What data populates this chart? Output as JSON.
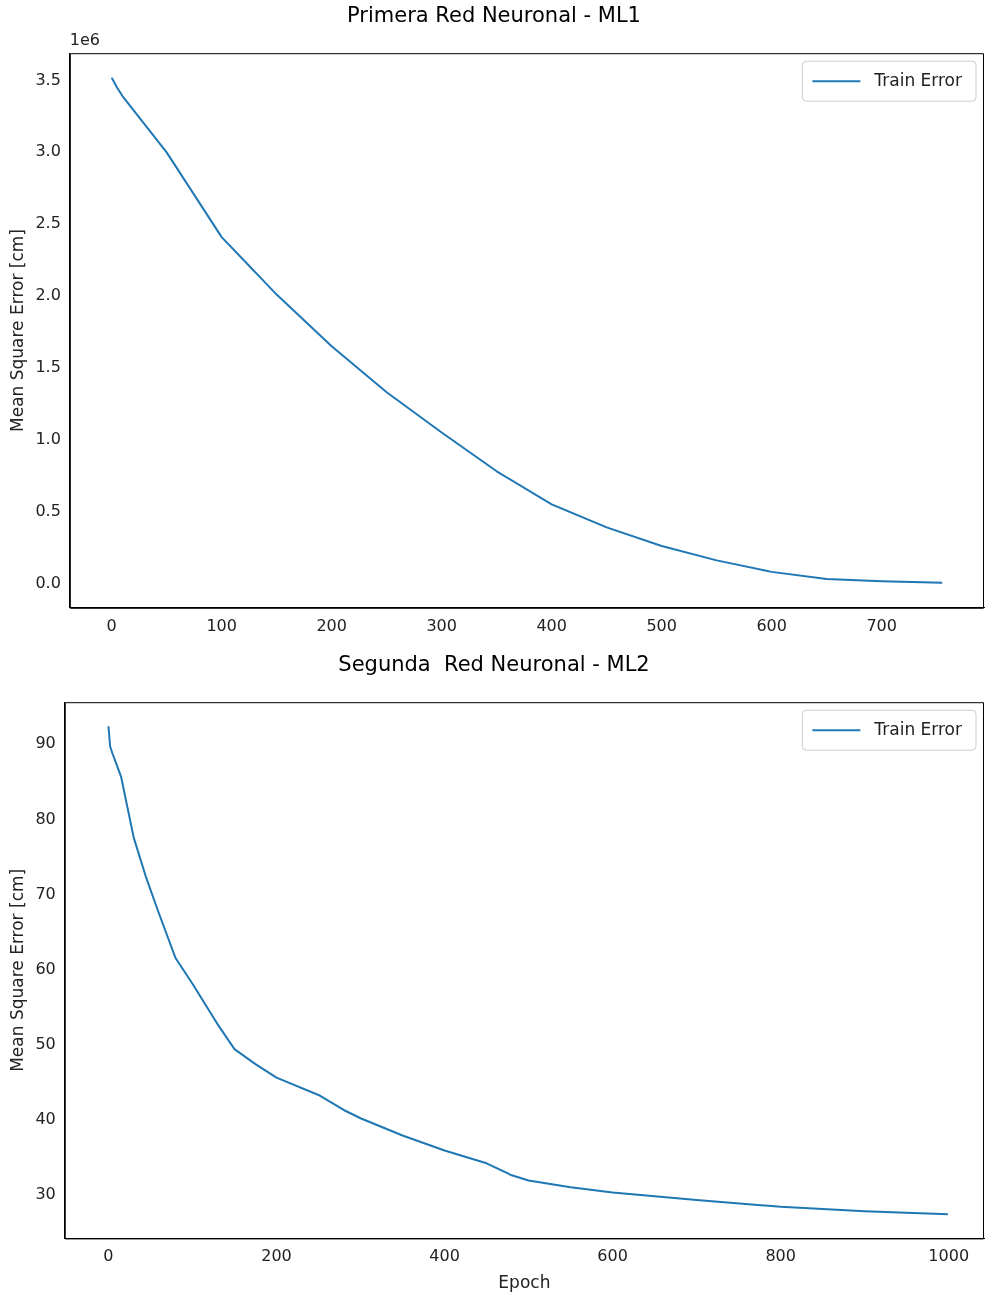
{
  "chart_data": [
    {
      "type": "line",
      "title": "Primera Red Neuronal - ML1",
      "ylabel": "Mean Square Error [cm]",
      "annotations": [
        "1e6"
      ],
      "legend": "top right",
      "xlim": [
        -38,
        793
      ],
      "xticks": [
        0,
        100,
        200,
        300,
        400,
        500,
        600,
        700
      ],
      "ylim": [
        -0.17,
        3.69
      ],
      "yticks": [
        {
          "value": 0,
          "label": "0.0"
        },
        0.5,
        {
          "value": 1,
          "label": "1.0"
        },
        1.5,
        {
          "value": 2,
          "label": "2.0"
        },
        2.5,
        {
          "value": 3,
          "label": "3.0"
        },
        3.5
      ],
      "series": [
        {
          "name": "Train Error",
          "color": "#1f77b4",
          "x": [
            0,
            5,
            10,
            50,
            100,
            150,
            200,
            250,
            300,
            350,
            400,
            450,
            500,
            550,
            600,
            650,
            700,
            755
          ],
          "values": [
            3.52,
            3.45,
            3.39,
            3.0,
            2.41,
            2.01,
            1.65,
            1.33,
            1.05,
            0.78,
            0.55,
            0.39,
            0.26,
            0.16,
            0.08,
            0.03,
            0.015,
            0.005
          ]
        }
      ]
    },
    {
      "type": "line",
      "title": "Segunda  Red Neuronal - ML2",
      "xlabel": "Epoch",
      "ylabel": "Mean Square Error [cm]",
      "legend": "top right",
      "xlim": [
        -52,
        1042
      ],
      "xticks": [
        0,
        200,
        400,
        600,
        800,
        1000
      ],
      "ylim": [
        24.2,
        95.6
      ],
      "yticks": [
        30,
        40,
        50,
        60,
        70,
        80,
        90
      ],
      "series": [
        {
          "name": "Train Error",
          "color": "#1f77b4",
          "x": [
            0,
            2,
            5,
            15,
            30,
            45,
            60,
            80,
            100,
            130,
            150,
            175,
            200,
            250,
            280,
            300,
            350,
            400,
            450,
            480,
            500,
            550,
            600,
            700,
            800,
            900,
            999
          ],
          "values": [
            92.4,
            89.7,
            88.7,
            85.7,
            77.6,
            72.2,
            67.5,
            61.5,
            58.1,
            52.7,
            49.4,
            47.4,
            45.6,
            43.3,
            41.3,
            40.2,
            37.9,
            35.9,
            34.2,
            32.6,
            31.9,
            31.0,
            30.3,
            29.3,
            28.4,
            27.8,
            27.4
          ]
        }
      ]
    }
  ]
}
